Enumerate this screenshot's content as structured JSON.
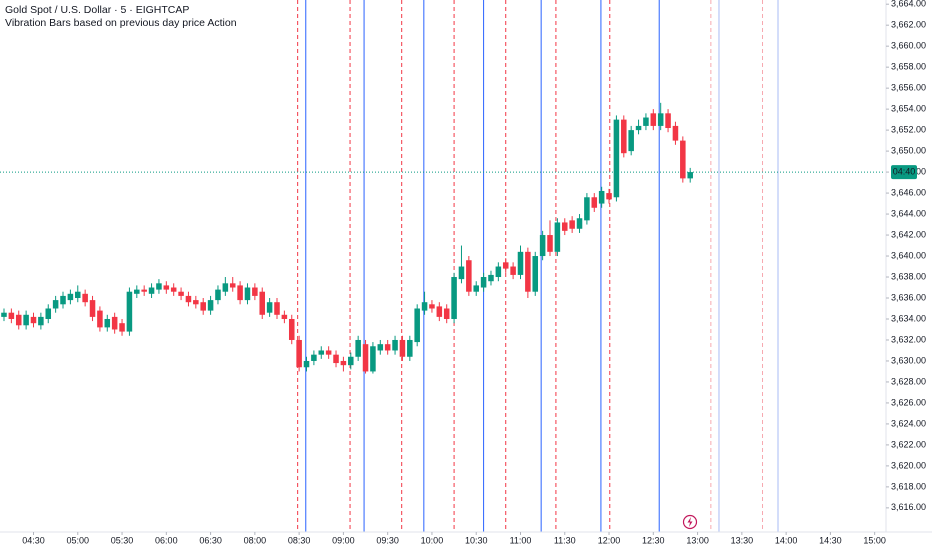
{
  "chart_data": {
    "type": "candlestick",
    "title": "Gold Spot / U.S. Dollar · 5 · EIGHTCAP",
    "subtitle": "Vibration Bars based on previous day price Action",
    "countdown_label": "04:40",
    "up_color": "#089981",
    "down_color": "#f23645",
    "x": [
      0,
      1,
      2,
      3,
      4,
      5,
      6,
      7,
      8,
      9,
      10,
      11,
      12,
      13,
      14,
      15,
      16,
      17,
      18,
      19,
      20,
      21,
      22,
      23,
      24,
      25,
      26,
      27,
      28,
      29,
      30,
      31,
      32,
      33,
      34,
      35,
      36,
      37,
      38,
      39,
      40,
      41,
      42,
      43,
      44,
      45,
      46,
      47,
      48,
      49,
      50,
      51,
      52,
      53,
      54,
      55,
      56,
      57,
      58,
      59,
      60,
      61,
      62,
      63,
      64,
      65,
      66,
      67,
      68,
      69,
      70,
      71,
      72,
      73,
      74,
      75,
      76,
      77,
      78,
      79,
      80,
      81,
      82,
      83,
      84,
      85,
      86,
      87,
      88,
      89,
      90,
      91,
      92,
      93
    ],
    "open": [
      3634.2,
      3634.6,
      3634.4,
      3633.4,
      3634.2,
      3633.4,
      3634.0,
      3635.0,
      3635.4,
      3635.8,
      3636.0,
      3636.4,
      3635.8,
      3634.8,
      3633.2,
      3634.2,
      3633.6,
      3632.8,
      3636.4,
      3636.8,
      3636.4,
      3636.8,
      3637.2,
      3637.0,
      3636.6,
      3636.2,
      3635.8,
      3635.6,
      3634.8,
      3635.8,
      3636.6,
      3637.4,
      3637.2,
      3635.8,
      3637.0,
      3636.6,
      3634.6,
      3635.6,
      3634.4,
      3634.0,
      3632.0,
      3629.4,
      3630.0,
      3630.6,
      3631.0,
      3630.6,
      3630.0,
      3629.6,
      3630.4,
      3631.6,
      3629.0,
      3631.0,
      3631.6,
      3631.0,
      3632.0,
      3630.4,
      3631.8,
      3634.8,
      3635.4,
      3635.2,
      3635.0,
      3634.0,
      3637.8,
      3639.6,
      3636.6,
      3637.0,
      3637.6,
      3638.0,
      3639.4,
      3639.0,
      3638.2,
      3640.4,
      3636.6,
      3640.0,
      3642.0,
      3640.4,
      3643.2,
      3643.4,
      3642.6,
      3643.4,
      3645.6,
      3645.0,
      3646.0,
      3645.6,
      3653.0,
      3650.0,
      3652.0,
      3652.4,
      3653.6,
      3652.4,
      3653.6,
      3652.4,
      3651.0,
      3647.4
    ],
    "high": [
      3635.0,
      3635.0,
      3634.8,
      3634.8,
      3634.6,
      3634.6,
      3635.4,
      3636.2,
      3636.6,
      3636.8,
      3637.2,
      3636.8,
      3636.2,
      3635.2,
      3634.4,
      3634.6,
      3634.0,
      3637.0,
      3637.2,
      3637.2,
      3637.4,
      3637.8,
      3637.6,
      3637.4,
      3637.0,
      3636.6,
      3636.2,
      3636.0,
      3636.2,
      3637.2,
      3638.0,
      3638.0,
      3637.6,
      3637.4,
      3637.4,
      3637.0,
      3636.0,
      3636.0,
      3634.8,
      3634.4,
      3632.4,
      3630.4,
      3631.0,
      3631.4,
      3631.4,
      3631.0,
      3630.4,
      3630.8,
      3632.4,
      3632.0,
      3631.8,
      3632.0,
      3632.0,
      3632.4,
      3632.4,
      3632.4,
      3635.4,
      3636.6,
      3635.8,
      3635.6,
      3635.4,
      3638.4,
      3641.0,
      3640.0,
      3637.6,
      3638.4,
      3638.6,
      3639.4,
      3639.8,
      3639.4,
      3641.0,
      3640.8,
      3640.4,
      3642.4,
      3643.4,
      3643.6,
      3643.6,
      3643.8,
      3644.0,
      3646.0,
      3646.0,
      3646.6,
      3646.4,
      3653.4,
      3653.4,
      3652.4,
      3653.0,
      3653.6,
      3654.0,
      3654.6,
      3654.0,
      3652.8,
      3651.4,
      3648.4
    ],
    "low": [
      3633.8,
      3633.6,
      3633.0,
      3633.0,
      3633.2,
      3633.0,
      3633.6,
      3634.6,
      3635.0,
      3635.4,
      3635.6,
      3635.2,
      3633.8,
      3632.8,
      3632.8,
      3632.6,
      3632.4,
      3632.4,
      3636.0,
      3636.2,
      3636.0,
      3636.4,
      3636.4,
      3636.2,
      3635.8,
      3635.2,
      3635.0,
      3634.4,
      3634.4,
      3635.4,
      3636.2,
      3636.6,
      3635.4,
      3635.4,
      3635.8,
      3634.0,
      3634.2,
      3634.0,
      3633.6,
      3631.6,
      3629.0,
      3629.0,
      3629.6,
      3630.2,
      3630.2,
      3629.4,
      3629.0,
      3629.2,
      3630.0,
      3628.8,
      3628.8,
      3630.6,
      3630.6,
      3630.6,
      3630.0,
      3630.0,
      3631.4,
      3634.4,
      3634.6,
      3633.8,
      3633.6,
      3633.6,
      3637.4,
      3636.2,
      3636.2,
      3636.6,
      3637.2,
      3637.6,
      3638.4,
      3637.8,
      3637.8,
      3636.0,
      3636.2,
      3639.6,
      3640.0,
      3640.0,
      3642.0,
      3642.2,
      3642.2,
      3643.0,
      3644.2,
      3644.6,
      3645.0,
      3645.2,
      3649.4,
      3649.6,
      3651.6,
      3652.0,
      3652.0,
      3652.0,
      3651.8,
      3650.6,
      3647.0,
      3647.0
    ],
    "close": [
      3634.6,
      3634.0,
      3633.4,
      3634.4,
      3633.6,
      3634.2,
      3635.0,
      3635.8,
      3636.2,
      3636.4,
      3636.6,
      3635.6,
      3634.2,
      3633.2,
      3634.0,
      3633.0,
      3632.8,
      3636.6,
      3636.8,
      3636.6,
      3637.0,
      3637.4,
      3636.8,
      3636.6,
      3636.2,
      3635.6,
      3635.4,
      3634.8,
      3635.8,
      3636.8,
      3637.4,
      3637.0,
      3635.8,
      3637.0,
      3636.2,
      3634.4,
      3635.6,
      3634.4,
      3634.0,
      3632.0,
      3629.4,
      3630.0,
      3630.6,
      3631.0,
      3630.6,
      3629.8,
      3629.6,
      3630.4,
      3632.0,
      3629.0,
      3631.4,
      3631.6,
      3631.0,
      3632.0,
      3630.4,
      3632.0,
      3635.0,
      3635.6,
      3635.0,
      3634.2,
      3634.0,
      3638.0,
      3639.0,
      3636.6,
      3637.2,
      3638.0,
      3638.2,
      3639.0,
      3638.8,
      3638.2,
      3640.4,
      3636.6,
      3640.0,
      3642.0,
      3640.4,
      3643.2,
      3642.4,
      3642.6,
      3643.6,
      3645.6,
      3644.6,
      3646.2,
      3645.4,
      3653.0,
      3649.8,
      3652.0,
      3652.4,
      3653.2,
      3652.4,
      3653.6,
      3652.2,
      3651.0,
      3647.4,
      3648.0
    ],
    "vlines": [
      {
        "x": 39.8,
        "color": "#f23645",
        "style": "dashed"
      },
      {
        "x": 40.9,
        "color": "#2962ff",
        "style": "solid"
      },
      {
        "x": 46.9,
        "color": "#f23645",
        "style": "dashed"
      },
      {
        "x": 48.8,
        "color": "#2962ff",
        "style": "solid"
      },
      {
        "x": 53.9,
        "color": "#f23645",
        "style": "dashed"
      },
      {
        "x": 56.9,
        "color": "#2962ff",
        "style": "solid"
      },
      {
        "x": 61.0,
        "color": "#f23645",
        "style": "dashed"
      },
      {
        "x": 65.0,
        "color": "#2962ff",
        "style": "solid"
      },
      {
        "x": 68.0,
        "color": "#f23645",
        "style": "dashed"
      },
      {
        "x": 72.8,
        "color": "#2962ff",
        "style": "solid"
      },
      {
        "x": 74.8,
        "color": "#f23645",
        "style": "dashed"
      },
      {
        "x": 80.9,
        "color": "#2962ff",
        "style": "solid"
      },
      {
        "x": 82.1,
        "color": "#f23645",
        "style": "dashed"
      },
      {
        "x": 88.8,
        "color": "#2962ff",
        "style": "solid"
      },
      {
        "x": 95.8,
        "color": "#f7a8b0",
        "style": "dashed"
      },
      {
        "x": 96.9,
        "color": "#a9bcf5",
        "style": "solid"
      },
      {
        "x": 102.8,
        "color": "#f7a8b0",
        "style": "dashed"
      },
      {
        "x": 104.9,
        "color": "#a9bcf5",
        "style": "solid"
      }
    ],
    "xlim": [
      -0.54,
      119.4
    ],
    "xticks": [
      {
        "value": 4,
        "label": "04:30"
      },
      {
        "value": 10,
        "label": "05:00"
      },
      {
        "value": 16,
        "label": "05:30"
      },
      {
        "value": 22,
        "label": "06:00"
      },
      {
        "value": 28,
        "label": "06:30"
      },
      {
        "value": 34,
        "label": "08:00"
      },
      {
        "value": 40,
        "label": "08:30"
      },
      {
        "value": 46,
        "label": "09:00"
      },
      {
        "value": 52,
        "label": "09:30"
      },
      {
        "value": 58,
        "label": "10:00"
      },
      {
        "value": 64,
        "label": "10:30"
      },
      {
        "value": 70,
        "label": "11:00"
      },
      {
        "value": 76,
        "label": "11:30"
      },
      {
        "value": 82,
        "label": "12:00"
      },
      {
        "value": 88,
        "label": "12:30"
      },
      {
        "value": 94,
        "label": "13:00"
      },
      {
        "value": 100,
        "label": "13:30"
      },
      {
        "value": 106,
        "label": "14:00"
      },
      {
        "value": 112,
        "label": "14:30"
      },
      {
        "value": 118,
        "label": "15:00"
      }
    ],
    "ylim": [
      3613.7,
      3664.4
    ],
    "yticks": [
      {
        "value": 3616,
        "label": "3,616.00"
      },
      {
        "value": 3618,
        "label": "3,618.00"
      },
      {
        "value": 3620,
        "label": "3,620.00"
      },
      {
        "value": 3622,
        "label": "3,622.00"
      },
      {
        "value": 3624,
        "label": "3,624.00"
      },
      {
        "value": 3626,
        "label": "3,626.00"
      },
      {
        "value": 3628,
        "label": "3,628.00"
      },
      {
        "value": 3630,
        "label": "3,630.00"
      },
      {
        "value": 3632,
        "label": "3,632.00"
      },
      {
        "value": 3634,
        "label": "3,634.00"
      },
      {
        "value": 3636,
        "label": "3,636.00"
      },
      {
        "value": 3638,
        "label": "3,638.00"
      },
      {
        "value": 3640,
        "label": "3,640.00"
      },
      {
        "value": 3642,
        "label": "3,642.00"
      },
      {
        "value": 3644,
        "label": "3,644.00"
      },
      {
        "value": 3646,
        "label": "3,646.00"
      },
      {
        "value": 3648,
        "label": "3,648.00"
      },
      {
        "value": 3650,
        "label": "3,650.00"
      },
      {
        "value": 3652,
        "label": "3,652.00"
      },
      {
        "value": 3654,
        "label": "3,654.00"
      },
      {
        "value": 3656,
        "label": "3,656.00"
      },
      {
        "value": 3658,
        "label": "3,658.00"
      },
      {
        "value": 3660,
        "label": "3,660.00"
      },
      {
        "value": 3662,
        "label": "3,662.00"
      },
      {
        "value": 3664,
        "label": "3,664.00"
      }
    ],
    "grid": false
  }
}
